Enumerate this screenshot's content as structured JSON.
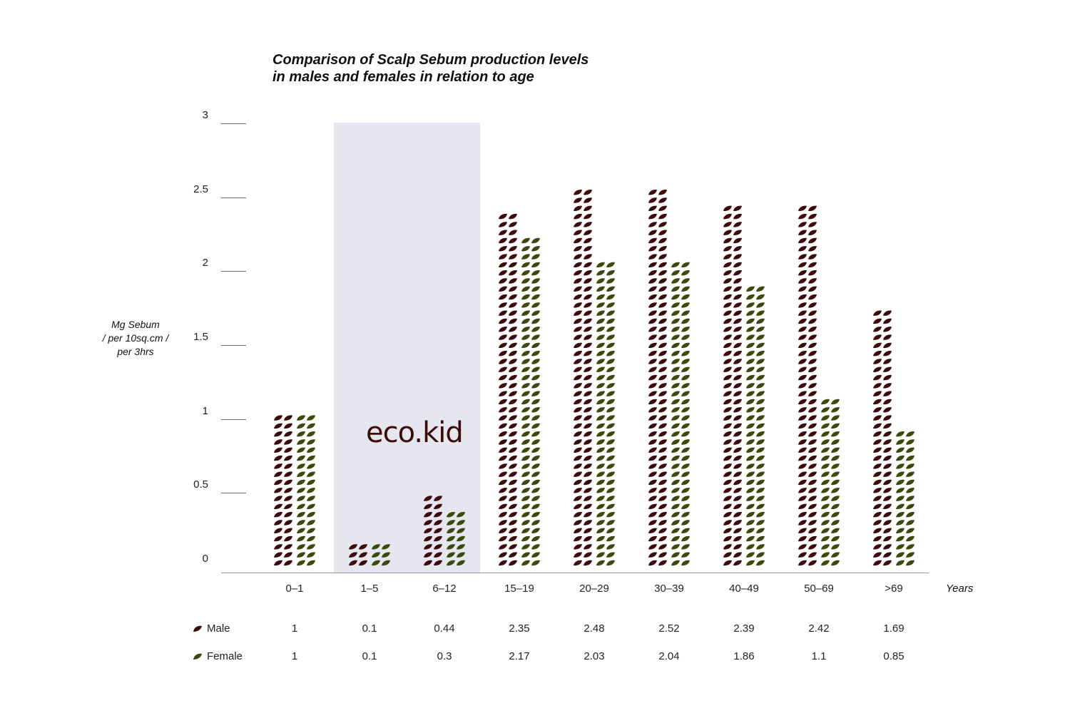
{
  "title_line1": "Comparison of Scalp Sebum production levels",
  "title_line2": "in males and females in relation to age",
  "ylabel_lines": [
    "Mg Sebum",
    "/ per 10sq.cm /",
    "per 3hrs"
  ],
  "x_unit": "Years",
  "logo_text": "eco.kid",
  "colors": {
    "male": "#3d0a0c",
    "female": "#3b4a0c",
    "highlight": "#e6e6ee"
  },
  "chart_data": {
    "type": "bar",
    "title": "Comparison of Scalp Sebum production levels in males and females in relation to age",
    "xlabel": "Years",
    "ylabel": "Mg Sebum / per 10sq.cm / per 3hrs",
    "ylim": [
      0,
      3
    ],
    "yticks": [
      "0",
      "0.5",
      "1",
      "1.5",
      "2",
      "2.5",
      "3"
    ],
    "grid": false,
    "legend_position": "bottom-left",
    "highlighted_categories": [
      "1–5",
      "6–12"
    ],
    "categories": [
      "0–1",
      "1–5",
      "6–12",
      "15–19",
      "20–29",
      "30–39",
      "40–49",
      "50–69",
      ">69"
    ],
    "series": [
      {
        "name": "Male",
        "values": [
          1,
          0.1,
          0.44,
          2.35,
          2.48,
          2.52,
          2.39,
          2.42,
          1.69
        ]
      },
      {
        "name": "Female",
        "values": [
          1,
          0.1,
          0.3,
          2.17,
          2.03,
          2.04,
          1.86,
          1.1,
          0.85
        ]
      }
    ],
    "table": {
      "rows": [
        {
          "label": "Male",
          "values": [
            "1",
            "0.1",
            "0.44",
            "2.35",
            "2.48",
            "2.52",
            "2.39",
            "2.42",
            "1.69"
          ]
        },
        {
          "label": "Female",
          "values": [
            "1",
            "0.1",
            "0.3",
            "2.17",
            "2.03",
            "2.04",
            "1.86",
            "1.1",
            "0.85"
          ]
        }
      ]
    }
  }
}
